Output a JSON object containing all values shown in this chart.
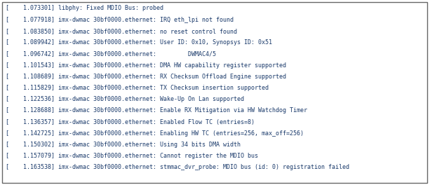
{
  "lines": [
    "[    1.073301] libphy: Fixed MDIO Bus: probed",
    "[    1.077918] imx-dwmac 30bf0000.ethernet: IRQ eth_lpi not found",
    "[    1.083850] imx-dwmac 30bf0000.ethernet: no reset control found",
    "[    1.089942] imx-dwmac 30bf0000.ethernet: User ID: 0x10, Synopsys ID: 0x51",
    "[    1.096742] imx-dwmac 30bf0000.ethernet:         DWMAC4/5",
    "[    1.101543] imx-dwmac 30bf0000.ethernet: DMA HW capability register supported",
    "[    1.108689] imx-dwmac 30bf0000.ethernet: RX Checksum Offload Engine supported",
    "[    1.115829] imx-dwmac 30bf0000.ethernet: TX Checksum insertion supported",
    "[    1.122536] imx-dwmac 30bf0000.ethernet: Wake-Up On Lan supported",
    "[    1.128688] imx-dwmac 30bf0000.ethernet: Enable RX Mitigation via HW Watchdog Timer",
    "[    1.136357] imx-dwmac 30bf0000.ethernet: Enabled Flow TC (entries=8)",
    "[    1.142725] imx-dwmac 30bf0000.ethernet: Enabling HW TC (entries=256, max_off=256)",
    "[    1.150302] imx-dwmac 30bf0000.ethernet: Using 34 bits DMA width",
    "[    1.157079] imx-dwmac 30bf0000.ethernet: Cannot register the MDIO bus",
    "[    1.163538] imx-dwmac 30bf0000.ethernet: stmmac_dvr_probe: MDIO bus (id: 0) registration failed"
  ],
  "text_color": "#1a3a6b",
  "bg_color": "#ffffff",
  "border_color": "#666666",
  "font_size": 6.0,
  "fig_width": 6.13,
  "fig_height": 2.64,
  "dpi": 100
}
